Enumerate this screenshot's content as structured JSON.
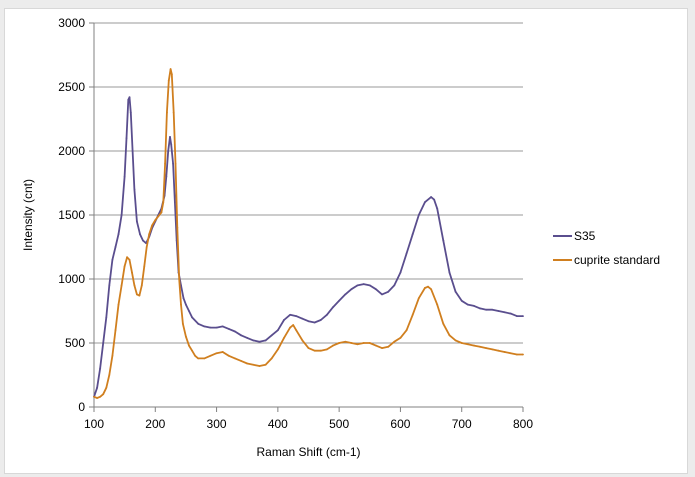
{
  "chart_data": {
    "type": "line",
    "title": "",
    "xlabel": "Raman Shift (cm-1)",
    "ylabel": "Intensity (cnt)",
    "xlim": [
      100,
      800
    ],
    "ylim": [
      0,
      3000
    ],
    "xticks": [
      100,
      200,
      300,
      400,
      500,
      600,
      700,
      800
    ],
    "yticks": [
      0,
      500,
      1000,
      1500,
      2000,
      2500,
      3000
    ],
    "grid": "horizontal",
    "legend_position": "right",
    "series": [
      {
        "name": "S35",
        "color": "#5a4e8e",
        "points": [
          [
            100,
            80
          ],
          [
            105,
            150
          ],
          [
            110,
            300
          ],
          [
            115,
            500
          ],
          [
            120,
            700
          ],
          [
            125,
            950
          ],
          [
            130,
            1150
          ],
          [
            135,
            1250
          ],
          [
            140,
            1350
          ],
          [
            145,
            1500
          ],
          [
            150,
            1800
          ],
          [
            153,
            2100
          ],
          [
            156,
            2400
          ],
          [
            158,
            2420
          ],
          [
            160,
            2300
          ],
          [
            163,
            2000
          ],
          [
            166,
            1700
          ],
          [
            170,
            1450
          ],
          [
            175,
            1350
          ],
          [
            180,
            1300
          ],
          [
            185,
            1280
          ],
          [
            190,
            1330
          ],
          [
            195,
            1400
          ],
          [
            200,
            1450
          ],
          [
            205,
            1500
          ],
          [
            210,
            1550
          ],
          [
            215,
            1650
          ],
          [
            218,
            1800
          ],
          [
            221,
            2000
          ],
          [
            224,
            2110
          ],
          [
            226,
            2050
          ],
          [
            229,
            1900
          ],
          [
            232,
            1600
          ],
          [
            235,
            1300
          ],
          [
            238,
            1050
          ],
          [
            242,
            950
          ],
          [
            246,
            850
          ],
          [
            250,
            800
          ],
          [
            255,
            750
          ],
          [
            260,
            700
          ],
          [
            270,
            650
          ],
          [
            280,
            630
          ],
          [
            290,
            620
          ],
          [
            300,
            620
          ],
          [
            310,
            630
          ],
          [
            320,
            610
          ],
          [
            330,
            590
          ],
          [
            340,
            560
          ],
          [
            350,
            540
          ],
          [
            360,
            520
          ],
          [
            370,
            510
          ],
          [
            380,
            520
          ],
          [
            390,
            560
          ],
          [
            400,
            600
          ],
          [
            410,
            680
          ],
          [
            420,
            720
          ],
          [
            430,
            710
          ],
          [
            440,
            690
          ],
          [
            450,
            670
          ],
          [
            460,
            660
          ],
          [
            470,
            680
          ],
          [
            480,
            720
          ],
          [
            490,
            780
          ],
          [
            500,
            830
          ],
          [
            510,
            880
          ],
          [
            520,
            920
          ],
          [
            530,
            950
          ],
          [
            540,
            960
          ],
          [
            550,
            950
          ],
          [
            560,
            920
          ],
          [
            570,
            880
          ],
          [
            580,
            900
          ],
          [
            590,
            950
          ],
          [
            600,
            1050
          ],
          [
            610,
            1200
          ],
          [
            620,
            1350
          ],
          [
            630,
            1500
          ],
          [
            640,
            1600
          ],
          [
            650,
            1640
          ],
          [
            655,
            1620
          ],
          [
            660,
            1550
          ],
          [
            670,
            1300
          ],
          [
            680,
            1050
          ],
          [
            690,
            900
          ],
          [
            700,
            830
          ],
          [
            710,
            800
          ],
          [
            720,
            790
          ],
          [
            730,
            770
          ],
          [
            740,
            760
          ],
          [
            750,
            760
          ],
          [
            760,
            750
          ],
          [
            770,
            740
          ],
          [
            780,
            730
          ],
          [
            790,
            710
          ],
          [
            800,
            710
          ]
        ]
      },
      {
        "name": "cuprite standard",
        "color": "#d07f1f",
        "points": [
          [
            100,
            80
          ],
          [
            105,
            70
          ],
          [
            110,
            80
          ],
          [
            115,
            100
          ],
          [
            120,
            150
          ],
          [
            125,
            250
          ],
          [
            130,
            400
          ],
          [
            135,
            600
          ],
          [
            140,
            800
          ],
          [
            145,
            950
          ],
          [
            150,
            1100
          ],
          [
            154,
            1170
          ],
          [
            158,
            1150
          ],
          [
            162,
            1050
          ],
          [
            166,
            950
          ],
          [
            170,
            880
          ],
          [
            174,
            870
          ],
          [
            178,
            950
          ],
          [
            182,
            1100
          ],
          [
            186,
            1250
          ],
          [
            190,
            1350
          ],
          [
            195,
            1420
          ],
          [
            200,
            1460
          ],
          [
            205,
            1490
          ],
          [
            210,
            1520
          ],
          [
            213,
            1600
          ],
          [
            216,
            1900
          ],
          [
            219,
            2300
          ],
          [
            222,
            2550
          ],
          [
            225,
            2640
          ],
          [
            227,
            2600
          ],
          [
            230,
            2300
          ],
          [
            233,
            1900
          ],
          [
            236,
            1400
          ],
          [
            239,
            1000
          ],
          [
            242,
            800
          ],
          [
            245,
            650
          ],
          [
            250,
            550
          ],
          [
            255,
            480
          ],
          [
            260,
            440
          ],
          [
            265,
            400
          ],
          [
            270,
            380
          ],
          [
            280,
            380
          ],
          [
            290,
            400
          ],
          [
            300,
            420
          ],
          [
            310,
            430
          ],
          [
            320,
            400
          ],
          [
            330,
            380
          ],
          [
            340,
            360
          ],
          [
            350,
            340
          ],
          [
            360,
            330
          ],
          [
            370,
            320
          ],
          [
            380,
            330
          ],
          [
            390,
            380
          ],
          [
            400,
            450
          ],
          [
            410,
            540
          ],
          [
            420,
            620
          ],
          [
            425,
            640
          ],
          [
            430,
            600
          ],
          [
            440,
            520
          ],
          [
            450,
            460
          ],
          [
            460,
            440
          ],
          [
            470,
            440
          ],
          [
            480,
            450
          ],
          [
            490,
            480
          ],
          [
            500,
            500
          ],
          [
            510,
            510
          ],
          [
            520,
            500
          ],
          [
            530,
            490
          ],
          [
            540,
            500
          ],
          [
            550,
            500
          ],
          [
            560,
            480
          ],
          [
            570,
            460
          ],
          [
            580,
            470
          ],
          [
            590,
            510
          ],
          [
            600,
            540
          ],
          [
            610,
            600
          ],
          [
            620,
            720
          ],
          [
            630,
            850
          ],
          [
            640,
            930
          ],
          [
            645,
            940
          ],
          [
            650,
            920
          ],
          [
            660,
            800
          ],
          [
            670,
            650
          ],
          [
            680,
            560
          ],
          [
            690,
            520
          ],
          [
            700,
            500
          ],
          [
            710,
            490
          ],
          [
            720,
            480
          ],
          [
            730,
            470
          ],
          [
            740,
            460
          ],
          [
            750,
            450
          ],
          [
            760,
            440
          ],
          [
            770,
            430
          ],
          [
            780,
            420
          ],
          [
            790,
            410
          ],
          [
            800,
            410
          ]
        ]
      }
    ]
  }
}
